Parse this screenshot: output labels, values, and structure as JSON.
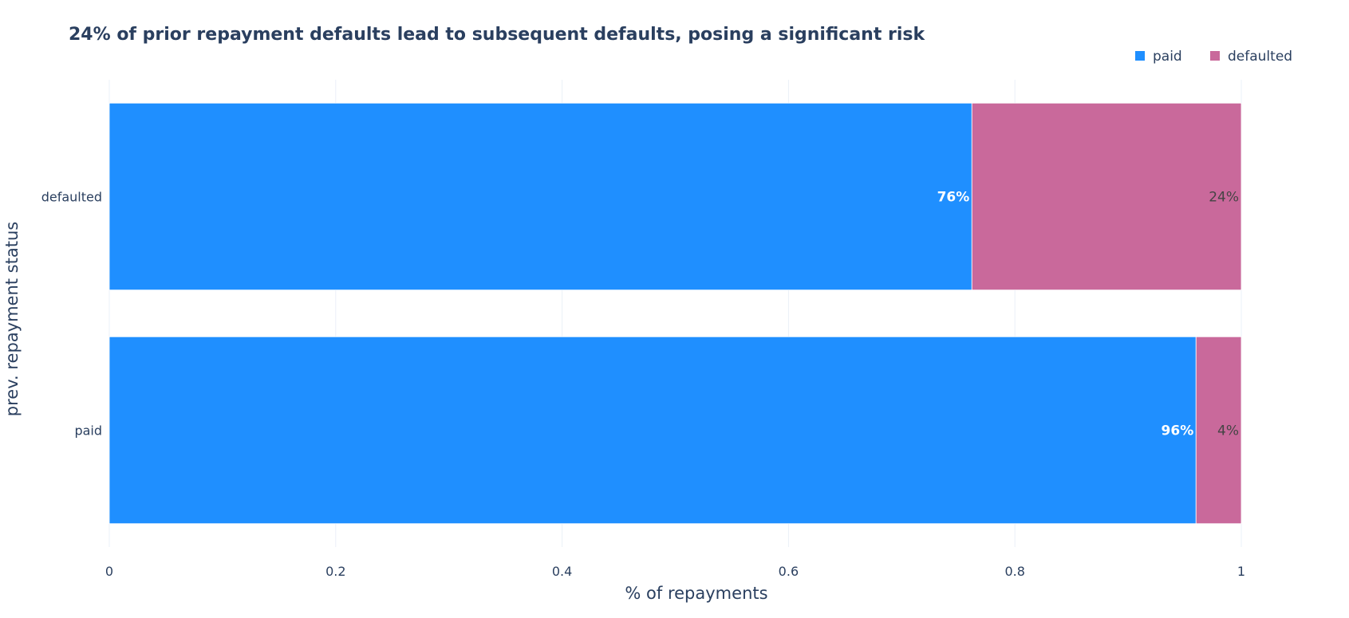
{
  "chart_data": {
    "type": "bar",
    "orientation": "horizontal",
    "stacked": true,
    "title": "24% of prior repayment defaults lead to subsequent defaults, posing a significant risk",
    "xlabel": "% of repayments",
    "ylabel": "prev. repayment status",
    "xlim": [
      0,
      1
    ],
    "x_ticks": [
      0,
      0.2,
      0.4,
      0.6,
      0.8,
      1
    ],
    "x_tick_labels": [
      "0",
      "0.2",
      "0.4",
      "0.6",
      "0.8",
      "1"
    ],
    "categories": [
      "defaulted",
      "paid"
    ],
    "series": [
      {
        "name": "paid",
        "color": "#1f8fff",
        "values": [
          0.762,
          0.96
        ],
        "labels": [
          "76%",
          "96%"
        ]
      },
      {
        "name": "defaulted",
        "color": "#c9699b",
        "values": [
          0.238,
          0.04
        ],
        "labels": [
          "24%",
          "4%"
        ]
      }
    ],
    "grid": true,
    "legend": "top-right"
  }
}
